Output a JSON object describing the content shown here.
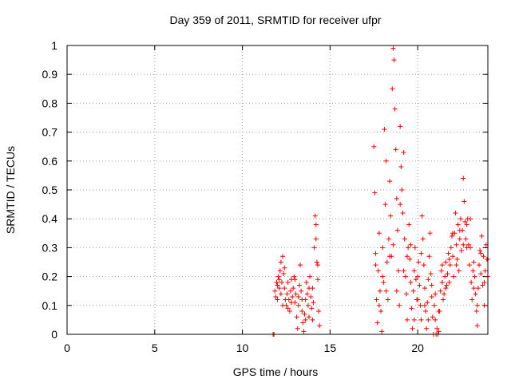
{
  "chart_data": {
    "type": "scatter",
    "title": "Day 359 of 2011, SRMTID for receiver ufpr",
    "xlabel": "GPS time / hours",
    "ylabel": "SRMTID / TECUs",
    "xlim": [
      0,
      24
    ],
    "ylim": [
      0,
      1
    ],
    "grid": true,
    "marker": "+",
    "marker_color": "#ff0000",
    "xticks": [
      0,
      5,
      10,
      15,
      20
    ],
    "xtick_labels": [
      "0",
      "5",
      "10",
      "15",
      "20"
    ],
    "yticks": [
      0,
      0.1,
      0.2,
      0.3,
      0.4,
      0.5,
      0.6,
      0.7,
      0.8,
      0.9,
      1
    ],
    "ytick_labels": [
      "0",
      "0.1",
      "0.2",
      "0.3",
      "0.4",
      "0.5",
      "0.6",
      "0.7",
      "0.8",
      "0.9",
      "1"
    ],
    "series": [
      {
        "name": "SRMTID",
        "points": [
          [
            11.75,
            0.0
          ],
          [
            11.8,
            0.0
          ],
          [
            11.85,
            0.15
          ],
          [
            11.9,
            0.13
          ],
          [
            11.95,
            0.18
          ],
          [
            12.0,
            0.17
          ],
          [
            12.05,
            0.2
          ],
          [
            12.1,
            0.16
          ],
          [
            12.15,
            0.22
          ],
          [
            12.2,
            0.25
          ],
          [
            12.25,
            0.18
          ],
          [
            12.3,
            0.27
          ],
          [
            12.35,
            0.21
          ],
          [
            12.4,
            0.16
          ],
          [
            12.45,
            0.12
          ],
          [
            12.5,
            0.1
          ],
          [
            12.55,
            0.14
          ],
          [
            12.6,
            0.18
          ],
          [
            12.65,
            0.12
          ],
          [
            12.7,
            0.08
          ],
          [
            12.75,
            0.15
          ],
          [
            12.8,
            0.19
          ],
          [
            12.85,
            0.13
          ],
          [
            12.9,
            0.16
          ],
          [
            12.95,
            0.2
          ],
          [
            13.0,
            0.11
          ],
          [
            13.05,
            0.14
          ],
          [
            13.1,
            0.06
          ],
          [
            13.15,
            0.02
          ],
          [
            13.2,
            0.1
          ],
          [
            13.25,
            0.17
          ],
          [
            13.3,
            0.24
          ],
          [
            13.35,
            0.15
          ],
          [
            13.4,
            0.08
          ],
          [
            13.45,
            0.04
          ],
          [
            13.5,
            0.01
          ],
          [
            13.55,
            0.07
          ],
          [
            13.6,
            0.12
          ],
          [
            13.65,
            0.18
          ],
          [
            13.7,
            0.14
          ],
          [
            13.75,
            0.1
          ],
          [
            13.8,
            0.16
          ],
          [
            13.85,
            0.2
          ],
          [
            13.9,
            0.13
          ],
          [
            13.95,
            0.09
          ],
          [
            14.0,
            0.05
          ],
          [
            14.05,
            0.11
          ],
          [
            14.1,
            0.3
          ],
          [
            14.15,
            0.41
          ],
          [
            14.2,
            0.33
          ],
          [
            14.25,
            0.25
          ],
          [
            14.3,
            0.19
          ],
          [
            14.35,
            0.08
          ],
          [
            14.4,
            0.03
          ],
          [
            12.0,
            0.12
          ],
          [
            12.1,
            0.19
          ],
          [
            12.2,
            0.14
          ],
          [
            12.3,
            0.1
          ],
          [
            12.4,
            0.23
          ],
          [
            12.6,
            0.09
          ],
          [
            12.8,
            0.11
          ],
          [
            13.0,
            0.19
          ],
          [
            13.2,
            0.13
          ],
          [
            13.4,
            0.12
          ],
          [
            13.6,
            0.05
          ],
          [
            13.8,
            0.06
          ],
          [
            14.0,
            0.16
          ],
          [
            14.2,
            0.38
          ],
          [
            14.3,
            0.24
          ],
          [
            17.5,
            0.65
          ],
          [
            17.55,
            0.49
          ],
          [
            17.6,
            0.28
          ],
          [
            17.65,
            0.12
          ],
          [
            17.7,
            0.04
          ],
          [
            17.75,
            0.22
          ],
          [
            17.8,
            0.35
          ],
          [
            17.85,
            0.15
          ],
          [
            17.9,
            0.08
          ],
          [
            17.95,
            0.01
          ],
          [
            18.0,
            0.3
          ],
          [
            18.05,
            0.18
          ],
          [
            18.1,
            0.71
          ],
          [
            18.15,
            0.45
          ],
          [
            18.2,
            0.6
          ],
          [
            18.25,
            0.25
          ],
          [
            18.3,
            0.12
          ],
          [
            18.35,
            0.33
          ],
          [
            18.4,
            0.53
          ],
          [
            18.45,
            0.41
          ],
          [
            18.5,
            0.27
          ],
          [
            18.55,
            0.85
          ],
          [
            18.6,
            0.99
          ],
          [
            18.65,
            0.95
          ],
          [
            18.7,
            0.78
          ],
          [
            18.75,
            0.64
          ],
          [
            18.8,
            0.47
          ],
          [
            18.85,
            0.36
          ],
          [
            18.9,
            0.22
          ],
          [
            18.95,
            0.1
          ],
          [
            19.0,
            0.72
          ],
          [
            19.05,
            0.58
          ],
          [
            19.1,
            0.5
          ],
          [
            19.15,
            0.42
          ],
          [
            19.2,
            0.63
          ],
          [
            19.25,
            0.33
          ],
          [
            19.3,
            0.2
          ],
          [
            19.35,
            0.14
          ],
          [
            19.4,
            0.05
          ],
          [
            19.45,
            0.3
          ],
          [
            19.5,
            0.38
          ],
          [
            19.55,
            0.26
          ],
          [
            19.6,
            0.18
          ],
          [
            19.65,
            0.09
          ],
          [
            19.7,
            0.02
          ],
          [
            19.75,
            0.15
          ],
          [
            19.8,
            0.22
          ],
          [
            19.85,
            0.3
          ],
          [
            19.9,
            0.19
          ],
          [
            19.95,
            0.12
          ],
          [
            20.0,
            0.2
          ],
          [
            20.05,
            0.25
          ],
          [
            20.1,
            0.17
          ],
          [
            20.15,
            0.1
          ],
          [
            20.2,
            0.05
          ],
          [
            20.25,
            0.41
          ],
          [
            20.3,
            0.33
          ],
          [
            20.35,
            0.24
          ],
          [
            20.4,
            0.16
          ],
          [
            20.45,
            0.08
          ],
          [
            20.5,
            0.02
          ],
          [
            20.55,
            0.11
          ],
          [
            20.6,
            0.19
          ],
          [
            20.65,
            0.27
          ],
          [
            20.7,
            0.35
          ],
          [
            20.75,
            0.21
          ],
          [
            20.8,
            0.13
          ],
          [
            20.85,
            0.06
          ],
          [
            20.9,
            0.0
          ],
          [
            20.95,
            0.1
          ],
          [
            21.0,
            0.05
          ],
          [
            21.05,
            0.0
          ],
          [
            21.1,
            0.02
          ],
          [
            21.15,
            0.0
          ],
          [
            21.2,
            0.01
          ],
          [
            21.25,
            0.08
          ],
          [
            21.3,
            0.15
          ],
          [
            21.35,
            0.22
          ],
          [
            21.4,
            0.18
          ],
          [
            21.45,
            0.12
          ],
          [
            21.5,
            0.14
          ],
          [
            21.55,
            0.2
          ],
          [
            21.6,
            0.25
          ],
          [
            21.65,
            0.17
          ],
          [
            21.7,
            0.21
          ],
          [
            21.75,
            0.28
          ],
          [
            21.8,
            0.18
          ],
          [
            21.85,
            0.24
          ],
          [
            21.9,
            0.3
          ],
          [
            21.95,
            0.34
          ],
          [
            22.0,
            0.27
          ],
          [
            22.05,
            0.2
          ],
          [
            22.1,
            0.35
          ],
          [
            22.15,
            0.42
          ],
          [
            22.2,
            0.31
          ],
          [
            22.25,
            0.26
          ],
          [
            22.3,
            0.38
          ],
          [
            22.35,
            0.22
          ],
          [
            22.4,
            0.33
          ],
          [
            22.45,
            0.4
          ],
          [
            22.5,
            0.29
          ],
          [
            22.55,
            0.36
          ],
          [
            22.6,
            0.54
          ],
          [
            22.65,
            0.46
          ],
          [
            22.7,
            0.39
          ],
          [
            22.75,
            0.33
          ],
          [
            22.8,
            0.38
          ],
          [
            22.85,
            0.4
          ],
          [
            22.9,
            0.31
          ],
          [
            22.95,
            0.24
          ],
          [
            23.0,
            0.3
          ],
          [
            23.05,
            0.18
          ],
          [
            23.1,
            0.12
          ],
          [
            23.15,
            0.22
          ],
          [
            23.2,
            0.25
          ],
          [
            23.25,
            0.2
          ],
          [
            23.3,
            0.14
          ],
          [
            23.35,
            0.08
          ],
          [
            23.4,
            0.03
          ],
          [
            23.45,
            0.16
          ],
          [
            23.5,
            0.24
          ],
          [
            23.55,
            0.29
          ],
          [
            23.6,
            0.21
          ],
          [
            23.65,
            0.34
          ],
          [
            23.7,
            0.17
          ],
          [
            23.75,
            0.27
          ],
          [
            23.8,
            0.1
          ],
          [
            23.85,
            0.22
          ],
          [
            23.9,
            0.31
          ],
          [
            23.95,
            0.26
          ],
          [
            24.0,
            0.2
          ],
          [
            17.6,
            0.24
          ],
          [
            17.8,
            0.1
          ],
          [
            18.0,
            0.2
          ],
          [
            18.2,
            0.15
          ],
          [
            18.4,
            0.27
          ],
          [
            18.6,
            0.31
          ],
          [
            18.8,
            0.15
          ],
          [
            19.0,
            0.45
          ],
          [
            19.2,
            0.22
          ],
          [
            19.4,
            0.27
          ],
          [
            19.6,
            0.31
          ],
          [
            19.8,
            0.05
          ],
          [
            20.0,
            0.12
          ],
          [
            20.2,
            0.28
          ],
          [
            20.4,
            0.1
          ],
          [
            20.6,
            0.05
          ],
          [
            20.8,
            0.17
          ],
          [
            21.0,
            0.14
          ],
          [
            21.2,
            0.08
          ],
          [
            21.4,
            0.24
          ],
          [
            21.6,
            0.16
          ],
          [
            21.8,
            0.26
          ],
          [
            22.0,
            0.35
          ],
          [
            22.2,
            0.24
          ],
          [
            22.4,
            0.36
          ],
          [
            22.6,
            0.31
          ],
          [
            22.8,
            0.3
          ],
          [
            23.0,
            0.4
          ],
          [
            23.2,
            0.16
          ],
          [
            23.4,
            0.1
          ],
          [
            23.6,
            0.28
          ],
          [
            23.8,
            0.18
          ],
          [
            24.0,
            0.26
          ]
        ]
      }
    ]
  }
}
